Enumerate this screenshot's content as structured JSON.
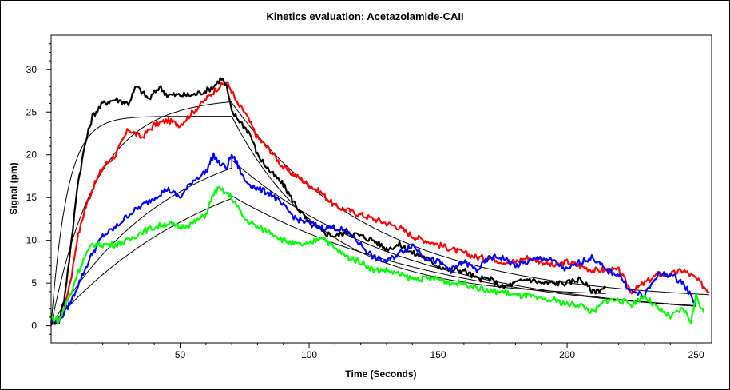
{
  "chart_data": {
    "type": "line",
    "title": "Kinetics evaluation: Acetazolamide-CAII",
    "xlabel": "Time (Seconds)",
    "ylabel": "Signal (pm)",
    "xlim": [
      0,
      256
    ],
    "ylim": [
      -2,
      34
    ],
    "x_ticks": [
      50,
      100,
      150,
      200,
      250
    ],
    "y_ticks": [
      0,
      5,
      10,
      15,
      20,
      25,
      30
    ],
    "grid": false,
    "legend": "none",
    "series": [
      {
        "color": "#ff0000",
        "style": "noisy",
        "x": [
          0,
          3,
          5,
          8,
          10,
          13,
          16,
          20,
          25,
          30,
          35,
          40,
          45,
          50,
          55,
          60,
          65,
          68,
          70,
          72,
          75,
          80,
          85,
          90,
          95,
          100,
          105,
          110,
          115,
          120,
          125,
          130,
          135,
          140,
          145,
          150,
          155,
          160,
          165,
          170,
          175,
          180,
          185,
          190,
          195,
          200,
          205,
          210,
          215,
          220,
          225,
          230,
          235,
          240,
          245,
          250,
          255
        ],
        "values": [
          0.5,
          0.5,
          2,
          6,
          10,
          13.5,
          16,
          18.5,
          20,
          23,
          22,
          23.5,
          24,
          23.5,
          25,
          26.5,
          28,
          28.5,
          27.5,
          26,
          25,
          22,
          20.5,
          18.5,
          17.5,
          16.5,
          15.5,
          14,
          13.5,
          13,
          12.5,
          12,
          11.5,
          10.5,
          10,
          9.5,
          9,
          8.5,
          8,
          8,
          7.5,
          7.5,
          8,
          7.5,
          7,
          7.5,
          7,
          6.5,
          6.5,
          6.5,
          4,
          5,
          6,
          6,
          6.5,
          5.5,
          4
        ]
      },
      {
        "color": "#000000",
        "style": "noisy",
        "x": [
          0,
          3,
          5,
          8,
          10,
          13,
          16,
          20,
          25,
          30,
          33,
          38,
          42,
          45,
          50,
          55,
          60,
          63,
          66,
          68,
          70,
          73,
          77,
          80,
          85,
          90,
          95,
          100,
          105,
          110,
          115,
          120,
          125,
          130,
          135,
          140,
          145,
          150,
          155,
          160,
          165,
          170,
          175,
          180,
          185,
          190,
          195,
          200,
          205,
          210,
          215
        ],
        "values": [
          0.5,
          0.5,
          3,
          10,
          16,
          21,
          24.5,
          26,
          26.5,
          26,
          28,
          26.5,
          28,
          27,
          27,
          27,
          27.5,
          28,
          29,
          28,
          25,
          24,
          22.5,
          20,
          18,
          16.5,
          14,
          12,
          11,
          10.5,
          11,
          10.5,
          10,
          9,
          9.5,
          8.5,
          8,
          7,
          6.5,
          6.5,
          5.5,
          5.5,
          4.5,
          5,
          5.5,
          5,
          5,
          5,
          5.5,
          4,
          4.5
        ]
      },
      {
        "color": "#0000ff",
        "style": "noisy",
        "x": [
          0,
          3,
          5,
          8,
          10,
          13,
          16,
          20,
          25,
          30,
          35,
          40,
          45,
          50,
          55,
          60,
          63,
          65,
          68,
          70,
          72,
          75,
          80,
          85,
          90,
          95,
          100,
          105,
          110,
          115,
          120,
          125,
          130,
          135,
          140,
          145,
          150,
          155,
          160,
          165,
          170,
          175,
          180,
          185,
          190,
          195,
          200,
          205,
          210,
          215,
          220,
          225,
          230,
          235,
          240,
          245,
          250
        ],
        "values": [
          0.5,
          0.5,
          1.5,
          3,
          4.5,
          6.5,
          8.5,
          10.5,
          11.5,
          13,
          14,
          15,
          16,
          15,
          17,
          18,
          20,
          19,
          18.5,
          20,
          19,
          17,
          16,
          15.5,
          14,
          12.5,
          12,
          11.5,
          11.5,
          11,
          9.5,
          8,
          7.5,
          8.5,
          9.5,
          8,
          7.5,
          6.5,
          7.5,
          6.5,
          8,
          8,
          7,
          7.5,
          8,
          7.5,
          6.5,
          7.5,
          8,
          6.5,
          6,
          4,
          3.5,
          6,
          6,
          5,
          2.5
        ]
      },
      {
        "color": "#00ff00",
        "style": "noisy",
        "x": [
          0,
          3,
          5,
          8,
          10,
          13,
          16,
          20,
          25,
          30,
          35,
          40,
          45,
          50,
          55,
          60,
          63,
          65,
          68,
          70,
          72,
          75,
          80,
          85,
          90,
          95,
          100,
          105,
          110,
          115,
          120,
          125,
          130,
          135,
          140,
          145,
          150,
          155,
          160,
          165,
          170,
          175,
          180,
          185,
          190,
          195,
          200,
          205,
          210,
          215,
          220,
          225,
          230,
          235,
          240,
          245,
          248,
          250,
          253
        ],
        "values": [
          1,
          0.5,
          2,
          4,
          6,
          8,
          9.5,
          9.5,
          9.5,
          10,
          11,
          11.5,
          12,
          11.5,
          12,
          13,
          15.5,
          16,
          15.5,
          15,
          14,
          12.5,
          11.5,
          11,
          10,
          9.5,
          9.5,
          10.5,
          9,
          8,
          7.5,
          6.5,
          6.5,
          6,
          5.5,
          5.5,
          5.5,
          5,
          5,
          4.5,
          4,
          4,
          3.5,
          3.5,
          3,
          3,
          2.5,
          2.5,
          1.5,
          3,
          3,
          2.5,
          3.5,
          2,
          1,
          2,
          0.5,
          3.5,
          1.5
        ]
      },
      {
        "color": "#000000",
        "style": "fit",
        "dissociation_start": 70,
        "association": {
          "A": 24.5,
          "k": 0.16
        },
        "dissociation": {
          "y0": 24.5,
          "k": 0.028,
          "floor": 3.4,
          "x_end": 215
        }
      },
      {
        "color": "#000000",
        "style": "fit",
        "dissociation_start": 70,
        "association": {
          "A": 26.7,
          "k": 0.057
        },
        "dissociation": {
          "y0": 26.1,
          "k": 0.018,
          "floor": 2.8,
          "x_end": 255
        }
      },
      {
        "color": "#000000",
        "style": "fit",
        "dissociation_start": 70,
        "association": {
          "A": 23.5,
          "k": 0.022
        },
        "dissociation": {
          "y0": 19.4,
          "k": 0.0145,
          "floor": 1.0,
          "x_end": 250
        }
      },
      {
        "color": "#000000",
        "style": "fit",
        "dissociation_start": 70,
        "association": {
          "A": 22.5,
          "k": 0.0155
        },
        "dissociation": {
          "y0": 15.2,
          "k": 0.012,
          "floor": 0.6,
          "x_end": 250
        }
      }
    ]
  }
}
